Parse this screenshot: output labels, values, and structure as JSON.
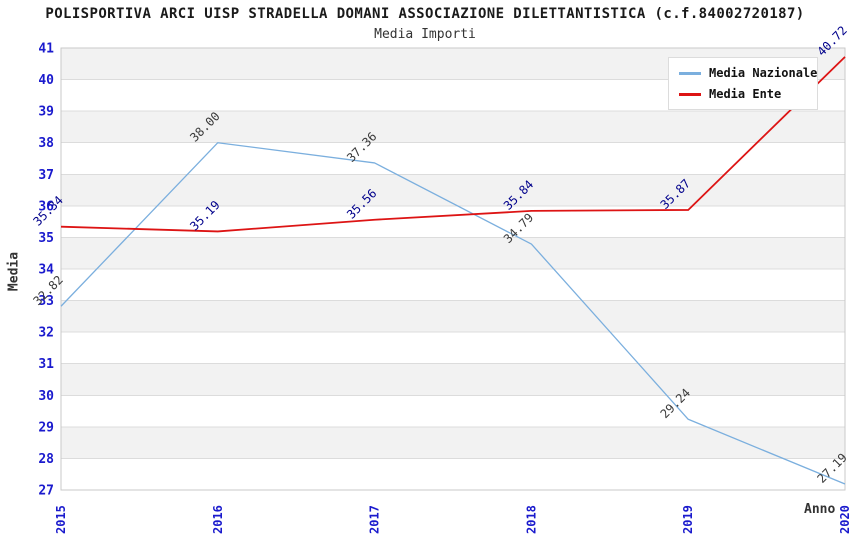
{
  "chart_data": {
    "type": "line",
    "title": "POLISPORTIVA ARCI UISP STRADELLA DOMANI ASSOCIAZIONE DILETTANTISTICA (c.f.84002720187)",
    "subtitle": "Media Importi",
    "xlabel": "Anno",
    "ylabel": "Media",
    "x": [
      2015,
      2016,
      2017,
      2018,
      2019,
      2020
    ],
    "ylim": [
      27,
      41
    ],
    "ytick_step": 1,
    "grid": "horizontal-bands-alternating",
    "legend_position": "top-right",
    "value_label_format": "2-decimals",
    "value_label_rotation_deg": -45,
    "series": [
      {
        "name": "Media Nazionale",
        "color": "#7bafde",
        "label_color": "#3a3a3a",
        "values": [
          32.82,
          38.0,
          37.36,
          34.79,
          29.24,
          27.19
        ]
      },
      {
        "name": "Media Ente",
        "color": "#dd1414",
        "label_color": "#00008b",
        "values": [
          35.34,
          35.19,
          35.56,
          35.84,
          35.87,
          40.72
        ]
      }
    ],
    "colors": {
      "tick_label": "#1a1acd",
      "band": "#f2f2f2",
      "grid": "#dcdcdc",
      "plot_border": "#c9c9c9",
      "plot_background": "#ffffff",
      "title": "#1a1a1a",
      "axis_title": "#333333"
    }
  }
}
